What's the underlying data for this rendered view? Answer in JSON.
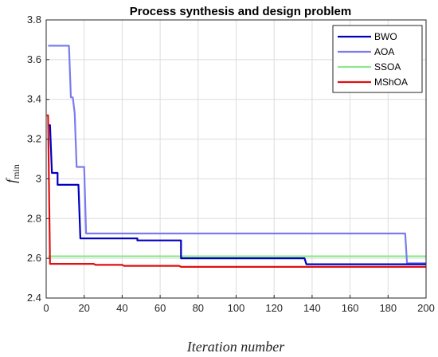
{
  "chart_data": {
    "type": "line",
    "title": "Process synthesis and design problem",
    "xlabel": "Iteration   number",
    "ylabel_main": "f",
    "ylabel_sub": "min",
    "xlim": [
      0,
      200
    ],
    "ylim": [
      2.4,
      3.8
    ],
    "x_ticks": [
      "0",
      "20",
      "40",
      "60",
      "80",
      "100",
      "120",
      "140",
      "160",
      "180",
      "200"
    ],
    "y_ticks": [
      "2.4",
      "2.6",
      "2.8",
      "3",
      "3.2",
      "3.4",
      "3.6",
      "3.8"
    ],
    "grid": true,
    "legend_position": "top-right",
    "series": [
      {
        "name": "BWO",
        "color": "#0000c0",
        "points": [
          [
            1,
            3.27
          ],
          [
            2,
            3.27
          ],
          [
            3,
            3.03
          ],
          [
            6,
            3.03
          ],
          [
            6,
            2.97
          ],
          [
            15,
            2.97
          ],
          [
            15,
            2.97
          ],
          [
            17,
            2.97
          ],
          [
            18,
            2.7
          ],
          [
            48,
            2.7
          ],
          [
            48,
            2.69
          ],
          [
            71,
            2.69
          ],
          [
            71,
            2.6
          ],
          [
            136,
            2.6
          ],
          [
            137,
            2.57
          ],
          [
            200,
            2.57
          ]
        ]
      },
      {
        "name": "AOA",
        "color": "#7b7bf0",
        "points": [
          [
            1,
            3.67
          ],
          [
            12,
            3.67
          ],
          [
            13,
            3.41
          ],
          [
            14,
            3.41
          ],
          [
            15,
            3.33
          ],
          [
            16,
            3.06
          ],
          [
            20,
            3.06
          ],
          [
            21,
            2.725
          ],
          [
            189,
            2.725
          ],
          [
            190,
            2.575
          ],
          [
            200,
            2.575
          ]
        ]
      },
      {
        "name": "SSOA",
        "color": "#8ee88e",
        "points": [
          [
            1,
            2.61
          ],
          [
            200,
            2.61
          ]
        ]
      },
      {
        "name": "MShOA",
        "color": "#e01010",
        "points": [
          [
            0.3,
            3.32
          ],
          [
            1,
            3.32
          ],
          [
            2,
            2.572
          ],
          [
            25,
            2.572
          ],
          [
            26,
            2.567
          ],
          [
            40,
            2.567
          ],
          [
            41,
            2.562
          ],
          [
            70,
            2.562
          ],
          [
            71,
            2.557
          ],
          [
            200,
            2.557
          ]
        ]
      }
    ]
  }
}
